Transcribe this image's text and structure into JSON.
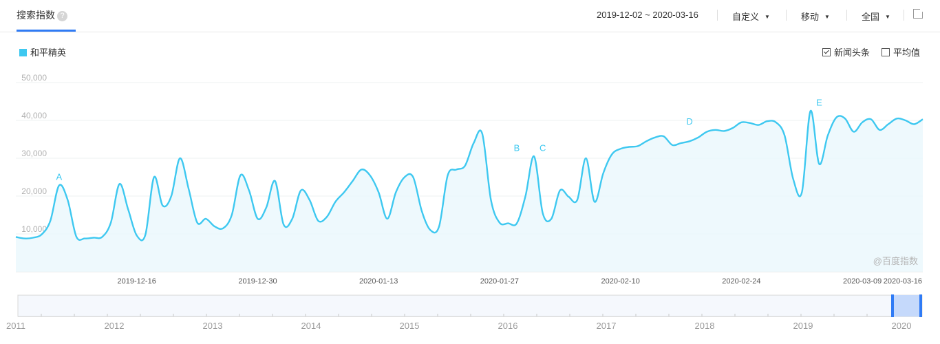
{
  "header": {
    "tab_label": "搜索指数",
    "help_icon": "?",
    "date_range": "2019-12-02 ~ 2020-03-16",
    "mode_select": "自定义",
    "device_select": "移动",
    "region_select": "全国"
  },
  "legend": {
    "series_name": "和平精英",
    "color": "#3ec8f0"
  },
  "options": {
    "news_label": "新闻头条",
    "news_checked": true,
    "avg_label": "平均值",
    "avg_checked": false
  },
  "watermark": "@百度指数",
  "navigator": {
    "years": [
      "2011",
      "2012",
      "2013",
      "2014",
      "2015",
      "2016",
      "2017",
      "2018",
      "2019",
      "2020"
    ]
  },
  "chart_data": {
    "type": "area",
    "title": "",
    "xlabel": "",
    "ylabel": "",
    "ylim": [
      0,
      50000
    ],
    "yticks": [
      10000,
      20000,
      30000,
      40000,
      50000
    ],
    "ytick_labels": [
      "10,000",
      "20,000",
      "30,000",
      "40,000",
      "50,000"
    ],
    "xtick_labels": [
      "2019-12-16",
      "2019-12-30",
      "2020-01-13",
      "2020-01-27",
      "2020-02-10",
      "2020-02-24",
      "2020-03-09",
      "2020-03-16"
    ],
    "start_date": "2019-12-02",
    "end_date": "2020-03-16",
    "grid": true,
    "series": [
      {
        "name": "和平精英",
        "color": "#3ec8f0",
        "values": [
          9200,
          8800,
          9000,
          9900,
          13500,
          22800,
          19000,
          9300,
          8800,
          9000,
          9200,
          13000,
          23200,
          16500,
          9600,
          9800,
          25000,
          17500,
          20000,
          30000,
          22000,
          13000,
          14000,
          12000,
          11500,
          15000,
          25500,
          21500,
          14000,
          17000,
          24000,
          12500,
          14000,
          21500,
          19000,
          13500,
          14500,
          18500,
          21000,
          24000,
          27000,
          25500,
          21000,
          14000,
          21000,
          25000,
          25000,
          16000,
          11000,
          12000,
          25500,
          27000,
          28000,
          34000,
          36500,
          19000,
          13000,
          12800,
          12800,
          20000,
          30500,
          15500,
          14000,
          21500,
          19800,
          19000,
          30000,
          18500,
          26000,
          31000,
          32500,
          33000,
          33200,
          34500,
          35500,
          35800,
          33500,
          34000,
          34500,
          35500,
          37000,
          37500,
          37200,
          38000,
          39500,
          39300,
          38800,
          39800,
          39500,
          36000,
          24500,
          21000,
          42500,
          28500,
          36000,
          40800,
          40500,
          37000,
          39500,
          40300,
          37500,
          39000,
          40500,
          40000,
          39000,
          40300
        ]
      }
    ],
    "annotations": [
      {
        "label": "A",
        "date": "2019-12-07"
      },
      {
        "label": "B",
        "date": "2020-01-29"
      },
      {
        "label": "C",
        "date": "2020-02-01"
      },
      {
        "label": "D",
        "date": "2020-02-18"
      },
      {
        "label": "E",
        "date": "2020-03-04"
      }
    ]
  }
}
